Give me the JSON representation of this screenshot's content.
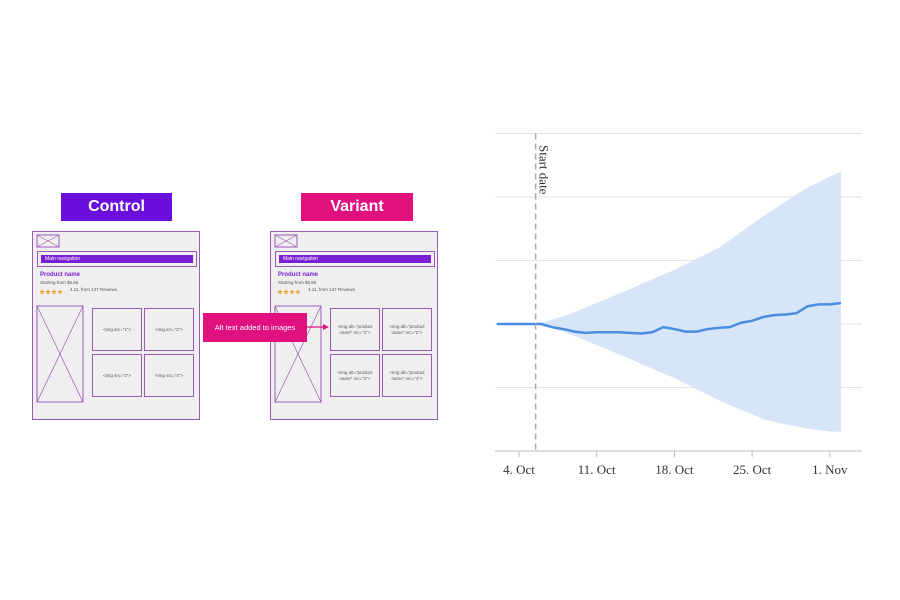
{
  "diagram": {
    "control": {
      "label": "Control",
      "nav": "Main navigation",
      "product_name": "Product name",
      "price": "Starting from $6.66",
      "rating": "4.11, from 147 Reviews",
      "images": [
        "<img src=\"1\">",
        "<img src=\"2\">",
        "<img src=\"3\">",
        "<img src=\"4\">"
      ]
    },
    "variant": {
      "label": "Variant",
      "nav": "Main navigation",
      "product_name": "Product name",
      "price": "Starting from $6.66",
      "rating": "4.11, from 147 Reviews",
      "images": [
        "<img alt=\"product name\" src=\"1\">",
        "<img alt=\"product name\" src=\"2\">",
        "<img alt=\"product name\" src=\"3\">",
        "<img alt=\"product name\" src=\"4\">"
      ]
    },
    "callout": "Alt text added to images"
  },
  "chart_data": {
    "type": "line",
    "x": [
      2,
      3,
      4,
      5,
      6,
      7,
      8,
      9,
      10,
      11,
      12,
      13,
      14,
      15,
      16,
      17,
      18,
      19,
      20,
      21,
      22,
      23,
      24,
      25,
      26,
      27,
      28,
      29,
      30,
      31,
      32,
      33
    ],
    "series": [
      {
        "color": "#4a8de0",
        "values": [
          0,
          0,
          0,
          0,
          0,
          -0.05,
          -0.08,
          -0.12,
          -0.14,
          -0.13,
          -0.13,
          -0.13,
          -0.14,
          -0.15,
          -0.13,
          -0.05,
          -0.08,
          -0.12,
          -0.12,
          -0.08,
          -0.06,
          -0.05,
          0.02,
          0.05,
          0.11,
          0.14,
          0.15,
          0.17,
          0.28,
          0.31,
          0.31,
          0.33
        ]
      }
    ],
    "band": {
      "color": "#d6e6f8",
      "upper": [
        0,
        0,
        0,
        0,
        0.02,
        0.07,
        0.12,
        0.19,
        0.26,
        0.33,
        0.4,
        0.48,
        0.55,
        0.63,
        0.7,
        0.78,
        0.85,
        0.94,
        1.03,
        1.11,
        1.2,
        1.32,
        1.45,
        1.57,
        1.7,
        1.81,
        1.93,
        2.04,
        2.15,
        2.23,
        2.32,
        2.4
      ],
      "lower": [
        0,
        0,
        0,
        0,
        -0.02,
        -0.07,
        -0.12,
        -0.19,
        -0.26,
        -0.33,
        -0.4,
        -0.48,
        -0.55,
        -0.63,
        -0.7,
        -0.78,
        -0.85,
        -0.94,
        -1.03,
        -1.11,
        -1.2,
        -1.28,
        -1.35,
        -1.42,
        -1.5,
        -1.54,
        -1.58,
        -1.61,
        -1.65,
        -1.67,
        -1.69,
        -1.7
      ]
    },
    "annotation": {
      "x": 5.5,
      "label": "Start date"
    },
    "xlim": [
      1.84,
      34.9
    ],
    "xticks": [
      {
        "value": 4,
        "label": "4. Oct"
      },
      {
        "value": 11,
        "label": "11. Oct"
      },
      {
        "value": 18,
        "label": "18. Oct"
      },
      {
        "value": 25,
        "label": "25. Oct"
      },
      {
        "value": 32,
        "label": "1. Nov"
      }
    ],
    "ylim": [
      -2,
      3
    ],
    "yticks": [
      -2,
      -1,
      0,
      1,
      2,
      3
    ],
    "grid": true
  }
}
